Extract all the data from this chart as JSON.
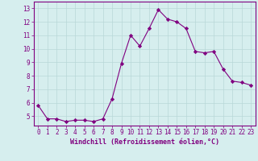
{
  "x": [
    0,
    1,
    2,
    3,
    4,
    5,
    6,
    7,
    8,
    9,
    10,
    11,
    12,
    13,
    14,
    15,
    16,
    17,
    18,
    19,
    20,
    21,
    22,
    23
  ],
  "y": [
    5.8,
    4.8,
    4.8,
    4.6,
    4.7,
    4.7,
    4.6,
    4.8,
    6.3,
    8.9,
    11.0,
    10.2,
    11.5,
    12.9,
    12.2,
    12.0,
    11.5,
    9.8,
    9.7,
    9.8,
    8.5,
    7.6,
    7.5,
    7.3
  ],
  "line_color": "#800080",
  "marker": "D",
  "markersize": 2.2,
  "linewidth": 0.8,
  "xlabel": "Windchill (Refroidissement éolien,°C)",
  "xlabel_fontsize": 6.0,
  "ylabel_ticks": [
    5,
    6,
    7,
    8,
    9,
    10,
    11,
    12,
    13
  ],
  "xtick_labels": [
    "0",
    "1",
    "2",
    "3",
    "4",
    "5",
    "6",
    "7",
    "8",
    "9",
    "10",
    "11",
    "12",
    "13",
    "14",
    "15",
    "16",
    "17",
    "18",
    "19",
    "20",
    "21",
    "22",
    "23"
  ],
  "xlim": [
    -0.5,
    23.5
  ],
  "ylim": [
    4.3,
    13.5
  ],
  "bg_color": "#d6eeee",
  "grid_color": "#b8d8d8",
  "tick_color": "#800080",
  "tick_fontsize": 5.5,
  "spine_color": "#800080"
}
